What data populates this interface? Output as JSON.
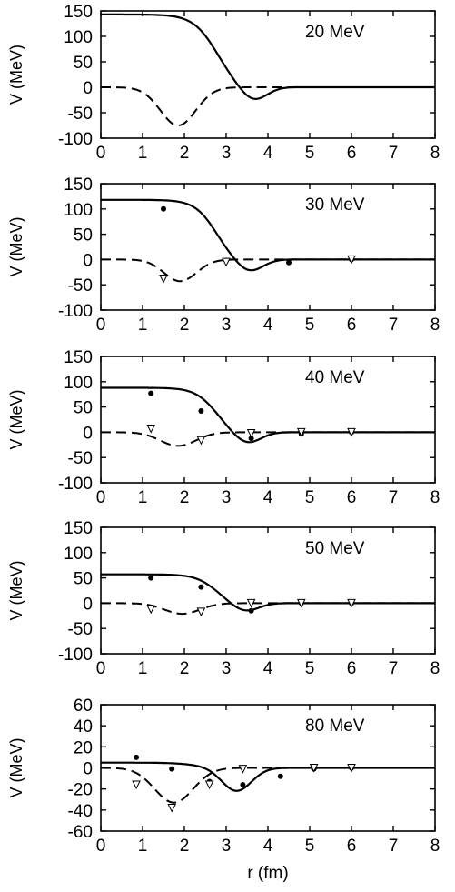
{
  "chart_data": [
    {
      "type": "line",
      "annotation": "20 MeV",
      "ylabel": "V (MeV)",
      "xlabel": "",
      "xlim": [
        0,
        8
      ],
      "ylim": [
        -100,
        150
      ],
      "xticks": [
        0,
        1,
        2,
        3,
        4,
        5,
        6,
        7,
        8
      ],
      "yticks": [
        -100,
        -50,
        0,
        50,
        100,
        150
      ],
      "curve_params": {
        "solid_depth": 143,
        "solid_center": 2.75,
        "solid_width": 0.28,
        "well_depth": 28,
        "well_center": 3.65,
        "well_width": 0.45,
        "dashed_depth": 75,
        "dashed_center": 1.85,
        "dashed_width": 0.6
      },
      "series": [
        {
          "style": "solid",
          "values": []
        },
        {
          "style": "dashed",
          "values": []
        }
      ],
      "points_filled": [],
      "points_open": []
    },
    {
      "type": "line",
      "annotation": "30 MeV",
      "ylabel": "V (MeV)",
      "xlabel": "",
      "xlim": [
        0,
        8
      ],
      "ylim": [
        -100,
        150
      ],
      "xticks": [
        0,
        1,
        2,
        3,
        4,
        5,
        6,
        7,
        8
      ],
      "yticks": [
        -100,
        -50,
        0,
        50,
        100,
        150
      ],
      "curve_params": {
        "solid_depth": 118,
        "solid_center": 2.72,
        "solid_width": 0.25,
        "well_depth": 25,
        "well_center": 3.55,
        "well_width": 0.45,
        "dashed_depth": 43,
        "dashed_center": 1.9,
        "dashed_width": 0.55
      },
      "series": [
        {
          "style": "solid",
          "values": []
        },
        {
          "style": "dashed",
          "values": []
        }
      ],
      "points_filled": [
        [
          1.5,
          100
        ],
        [
          3.0,
          -2
        ],
        [
          4.5,
          -6
        ],
        [
          6.0,
          0
        ]
      ],
      "points_open": [
        [
          1.5,
          -38
        ],
        [
          3.0,
          -5
        ],
        [
          6.0,
          0
        ]
      ]
    },
    {
      "type": "line",
      "annotation": "40 MeV",
      "ylabel": "V (MeV)",
      "xlabel": "",
      "xlim": [
        0,
        8
      ],
      "ylim": [
        -100,
        150
      ],
      "xticks": [
        0,
        1,
        2,
        3,
        4,
        5,
        6,
        7,
        8
      ],
      "yticks": [
        -100,
        -50,
        0,
        50,
        100,
        150
      ],
      "curve_params": {
        "solid_depth": 88,
        "solid_center": 2.72,
        "solid_width": 0.25,
        "well_depth": 23,
        "well_center": 3.5,
        "well_width": 0.45,
        "dashed_depth": 27,
        "dashed_center": 1.85,
        "dashed_width": 0.6
      },
      "series": [
        {
          "style": "solid",
          "values": []
        },
        {
          "style": "dashed",
          "values": []
        }
      ],
      "points_filled": [
        [
          1.2,
          77
        ],
        [
          2.4,
          42
        ],
        [
          3.6,
          -12
        ],
        [
          4.8,
          -3
        ],
        [
          6.0,
          0
        ]
      ],
      "points_open": [
        [
          1.2,
          7
        ],
        [
          2.4,
          -16
        ],
        [
          3.6,
          -2
        ],
        [
          4.8,
          0
        ],
        [
          6.0,
          0
        ]
      ]
    },
    {
      "type": "line",
      "annotation": "50 MeV",
      "ylabel": "V (MeV)",
      "xlabel": "",
      "xlim": [
        0,
        8
      ],
      "ylim": [
        -100,
        150
      ],
      "xticks": [
        0,
        1,
        2,
        3,
        4,
        5,
        6,
        7,
        8
      ],
      "yticks": [
        -100,
        -50,
        0,
        50,
        100,
        150
      ],
      "curve_params": {
        "solid_depth": 57,
        "solid_center": 2.72,
        "solid_width": 0.25,
        "well_depth": 17,
        "well_center": 3.45,
        "well_width": 0.45,
        "dashed_depth": 21,
        "dashed_center": 1.95,
        "dashed_width": 0.6
      },
      "series": [
        {
          "style": "solid",
          "values": []
        },
        {
          "style": "dashed",
          "values": []
        }
      ],
      "points_filled": [
        [
          1.2,
          50
        ],
        [
          2.4,
          32
        ],
        [
          3.6,
          -15
        ],
        [
          4.8,
          0
        ],
        [
          6.0,
          0
        ]
      ],
      "points_open": [
        [
          1.2,
          -12
        ],
        [
          2.4,
          -17
        ],
        [
          3.6,
          0
        ],
        [
          4.8,
          0
        ],
        [
          6.0,
          0
        ]
      ]
    },
    {
      "type": "line",
      "annotation": "80 MeV",
      "ylabel": "V (MeV)",
      "xlabel": "r (fm)",
      "xlim": [
        0,
        8
      ],
      "ylim": [
        -60,
        60
      ],
      "xticks": [
        0,
        1,
        2,
        3,
        4,
        5,
        6,
        7,
        8
      ],
      "yticks": [
        -60,
        -40,
        -20,
        0,
        20,
        40,
        60
      ],
      "curve_params": {
        "solid_depth": 5,
        "solid_center": 2.3,
        "solid_width": 0.3,
        "well_depth": 22,
        "well_center": 3.25,
        "well_width": 0.5,
        "dashed_depth": 33,
        "dashed_center": 1.75,
        "dashed_width": 0.65
      },
      "series": [
        {
          "style": "solid",
          "values": []
        },
        {
          "style": "dashed",
          "values": []
        }
      ],
      "points_filled": [
        [
          0.85,
          10
        ],
        [
          1.7,
          -1
        ],
        [
          2.6,
          -13
        ],
        [
          3.4,
          -16
        ],
        [
          4.3,
          -8
        ],
        [
          5.1,
          -1
        ],
        [
          6.0,
          0
        ]
      ],
      "points_open": [
        [
          0.85,
          -16
        ],
        [
          1.7,
          -38
        ],
        [
          2.6,
          -16
        ],
        [
          3.4,
          -1
        ],
        [
          5.1,
          0
        ],
        [
          6.0,
          0
        ]
      ]
    }
  ]
}
